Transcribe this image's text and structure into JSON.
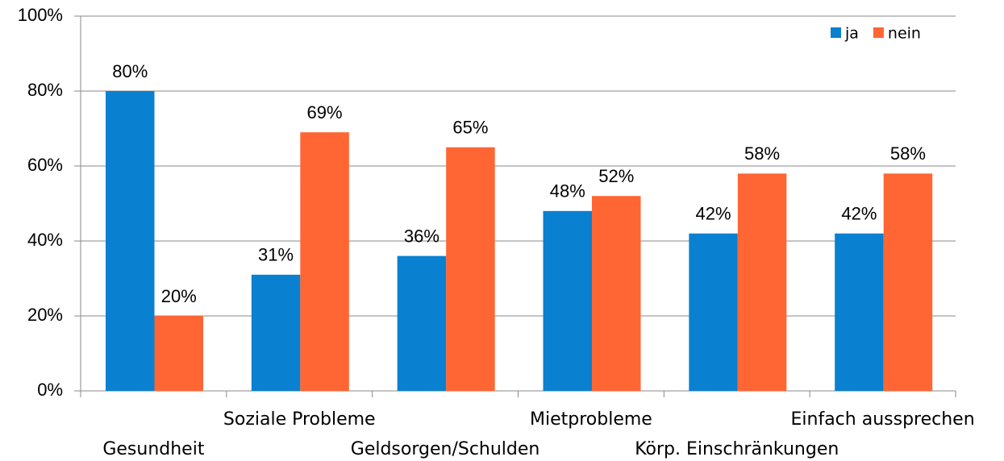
{
  "chart_data": {
    "type": "bar",
    "categories": [
      "Gesundheit",
      "Soziale Probleme",
      "Geldsorgen/Schulden",
      "Mietprobleme",
      "Körp. Einschränkungen",
      "Einfach aussprechen"
    ],
    "series": [
      {
        "name": "ja",
        "color": "#0a80d0",
        "values": [
          80,
          31,
          36,
          48,
          42,
          42
        ],
        "value_labels": [
          "80%",
          "31%",
          "36%",
          "48%",
          "42%",
          "42%"
        ]
      },
      {
        "name": "nein",
        "color": "#ff6633",
        "values": [
          20,
          69,
          65,
          52,
          58,
          58
        ],
        "value_labels": [
          "20%",
          "69%",
          "65%",
          "52%",
          "58%",
          "58%"
        ]
      }
    ],
    "ylim": [
      0,
      100
    ],
    "yticks": [
      {
        "value": 0,
        "label": "0%"
      },
      {
        "value": 20,
        "label": "20%"
      },
      {
        "value": 40,
        "label": "40%"
      },
      {
        "value": 60,
        "label": "60%"
      },
      {
        "value": 80,
        "label": "80%"
      },
      {
        "value": 100,
        "label": "100%"
      }
    ],
    "grid": true,
    "legend": "top-right"
  }
}
